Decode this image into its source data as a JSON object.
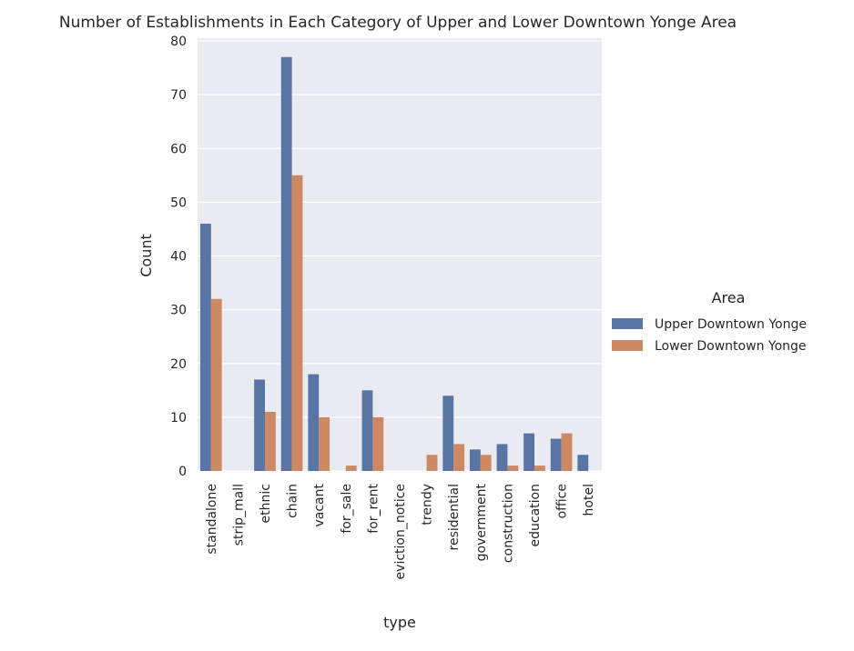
{
  "chart_data": {
    "type": "bar",
    "title": "Number of Establishments in Each Category of Upper and Lower Downtown Yonge Area",
    "xlabel": "type",
    "ylabel": "Count",
    "ylim": [
      0,
      80
    ],
    "yticks": [
      0,
      10,
      20,
      30,
      40,
      50,
      60,
      70,
      80
    ],
    "grid": true,
    "legend_placement": "right",
    "legend_title": "Area",
    "categories": [
      "standalone",
      "strip_mall",
      "ethnic",
      "chain",
      "vacant",
      "for_sale",
      "for_rent",
      "eviction_notice",
      "trendy",
      "residential",
      "government",
      "construction",
      "education",
      "office",
      "hotel"
    ],
    "series": [
      {
        "name": "Upper Downtown Yonge",
        "color": "#5975a4",
        "values": [
          46,
          0,
          17,
          77,
          18,
          0,
          15,
          0,
          0,
          14,
          4,
          5,
          7,
          6,
          3
        ]
      },
      {
        "name": "Lower Downtown Yonge",
        "color": "#cc8963",
        "values": [
          32,
          0,
          11,
          55,
          10,
          1,
          10,
          0,
          3,
          5,
          3,
          1,
          1,
          7,
          0
        ]
      }
    ]
  },
  "style": {
    "plot_background": "#eaeaf2",
    "grid_color": "#ffffff",
    "text_color": "#262626"
  }
}
